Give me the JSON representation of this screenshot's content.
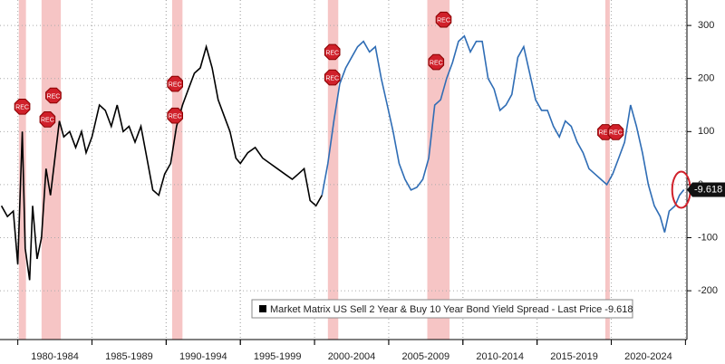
{
  "chart_data": {
    "type": "line",
    "xlim": [
      1978.8,
      2025.1
    ],
    "ylim": [
      -292,
      348
    ],
    "yticks": [
      -200,
      -100,
      0,
      100,
      200,
      300
    ],
    "xticks": [
      {
        "value": 1982.5,
        "label": "1980-1984"
      },
      {
        "value": 1987.5,
        "label": "1985-1989"
      },
      {
        "value": 1992.5,
        "label": "1990-1994"
      },
      {
        "value": 1997.5,
        "label": "1995-1999"
      },
      {
        "value": 2002.5,
        "label": "2000-2004"
      },
      {
        "value": 2007.5,
        "label": "2005-2009"
      },
      {
        "value": 2012.5,
        "label": "2010-2014"
      },
      {
        "value": 2017.5,
        "label": "2015-2019"
      },
      {
        "value": 2022.5,
        "label": "2020-2024"
      }
    ],
    "grid": true,
    "recessions": [
      [
        1980.07,
        1980.55
      ],
      [
        1981.6,
        1982.9
      ],
      [
        1990.4,
        1991.1
      ],
      [
        2000.9,
        2001.6
      ],
      [
        2007.6,
        2009.1
      ],
      [
        2019.6,
        2019.9
      ]
    ],
    "rec_markers": [
      {
        "x": 1980.3,
        "y": 147,
        "label": "REC"
      },
      {
        "x": 1982.0,
        "y": 123,
        "label": "REC"
      },
      {
        "x": 1982.4,
        "y": 168,
        "label": "REC"
      },
      {
        "x": 1990.6,
        "y": 190,
        "label": "REC"
      },
      {
        "x": 1990.6,
        "y": 130,
        "label": "REC"
      },
      {
        "x": 2001.2,
        "y": 250,
        "label": "REC"
      },
      {
        "x": 2001.2,
        "y": 202,
        "label": "REC"
      },
      {
        "x": 2008.2,
        "y": 231,
        "label": "REC"
      },
      {
        "x": 2008.7,
        "y": 311,
        "label": "REC"
      },
      {
        "x": 2019.6,
        "y": 99,
        "label": "REC"
      },
      {
        "x": 2020.3,
        "y": 99,
        "label": "REC"
      }
    ],
    "series": [
      {
        "name": "Market Matrix US Sell 2 Year & Buy 10 Year Bond Yield Spread - Last Price -9.618",
        "color": "#000000",
        "x": [
          1978.9,
          1979.3,
          1979.7,
          1980.0,
          1980.3,
          1980.5,
          1980.8,
          1981.0,
          1981.3,
          1981.6,
          1981.9,
          1982.2,
          1982.5,
          1982.8,
          1983.1,
          1983.5,
          1983.9,
          1984.3,
          1984.6,
          1985.0,
          1985.5,
          1985.9,
          1986.3,
          1986.7,
          1987.1,
          1987.5,
          1987.9,
          1988.3,
          1988.7,
          1989.1,
          1989.5,
          1989.9,
          1990.3,
          1990.7,
          1991.1,
          1991.5,
          1991.9,
          1992.3,
          1992.7,
          1993.1,
          1993.5,
          1993.9,
          1994.3,
          1994.7,
          1995.0,
          1995.5,
          1996.0,
          1996.5,
          1997.0,
          1997.5,
          1998.0,
          1998.5,
          1998.9,
          1999.3,
          1999.7,
          2000.1,
          2000.5
        ],
        "values": [
          -40,
          -60,
          -50,
          -150,
          100,
          -120,
          -180,
          -40,
          -140,
          -100,
          30,
          -20,
          50,
          120,
          90,
          100,
          70,
          100,
          60,
          90,
          150,
          140,
          110,
          150,
          100,
          110,
          80,
          110,
          50,
          -10,
          -20,
          20,
          40,
          110,
          150,
          180,
          210,
          220,
          260,
          220,
          160,
          130,
          100,
          50,
          40,
          60,
          70,
          50,
          40,
          30,
          20,
          10,
          20,
          30,
          -30,
          -40,
          -20
        ]
      },
      {
        "color": "#2f6db5",
        "x": [
          2000.5,
          2000.9,
          2001.3,
          2001.7,
          2002.1,
          2002.5,
          2002.9,
          2003.3,
          2003.7,
          2004.1,
          2004.5,
          2004.9,
          2005.3,
          2005.7,
          2006.1,
          2006.5,
          2006.9,
          2007.3,
          2007.7,
          2008.1,
          2008.5,
          2008.9,
          2009.3,
          2009.7,
          2010.1,
          2010.5,
          2010.9,
          2011.3,
          2011.7,
          2012.1,
          2012.5,
          2012.9,
          2013.3,
          2013.7,
          2014.1,
          2014.5,
          2014.9,
          2015.3,
          2015.7,
          2016.1,
          2016.5,
          2016.9,
          2017.3,
          2017.7,
          2018.1,
          2018.5,
          2018.9,
          2019.3,
          2019.7,
          2020.1,
          2020.5,
          2020.9,
          2021.3,
          2021.7,
          2022.1,
          2022.5,
          2022.9,
          2023.3,
          2023.6,
          2023.9,
          2024.3,
          2024.6,
          2024.9
        ],
        "values": [
          -20,
          40,
          120,
          190,
          220,
          240,
          260,
          270,
          250,
          260,
          200,
          150,
          100,
          40,
          10,
          -10,
          -5,
          10,
          50,
          150,
          160,
          200,
          230,
          270,
          280,
          250,
          270,
          270,
          200,
          180,
          140,
          150,
          170,
          240,
          260,
          210,
          160,
          140,
          140,
          110,
          90,
          120,
          110,
          80,
          60,
          30,
          20,
          10,
          0,
          20,
          50,
          80,
          150,
          110,
          60,
          0,
          -40,
          -60,
          -90,
          -50,
          -40,
          -20,
          -9.618
        ]
      }
    ]
  }
}
